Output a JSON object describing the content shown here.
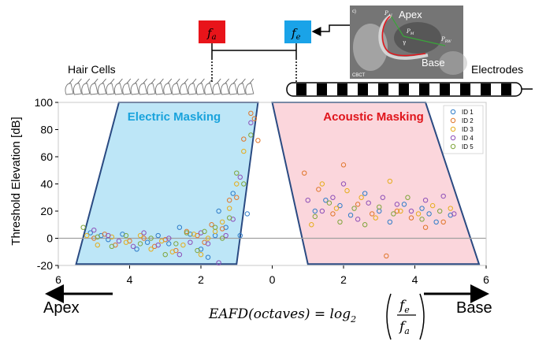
{
  "figure": {
    "fa_label": "f",
    "fa_sub": "a",
    "fe_label": "f",
    "fe_sub": "e",
    "hair_cells_label": "Hair Cells",
    "electrodes_label": "Electrodes",
    "ct_inset": {
      "corner_label": "c)",
      "apex_label": "Apex",
      "base_label": "Base",
      "modality_label": "CBCT",
      "pa_label": "P",
      "pa_sub": "AI",
      "pm_label": "P",
      "pm_sub": "M",
      "prw_label": "P",
      "prw_sub": "RW",
      "angle_label": "γ"
    },
    "electric_masking_label": "Electric Masking",
    "acoustic_masking_label": "Acoustic Masking",
    "apex_arrow_label": "Apex",
    "base_arrow_label": "Base",
    "formula": {
      "lhs": "EAFD(octaves) = log",
      "log_base": "2",
      "num": "f",
      "num_sub": "e",
      "den": "f",
      "den_sub": "a"
    },
    "colors": {
      "fa_box": "#e8141a",
      "fe_box": "#1aa3e8",
      "electric_fill": "#bde6f7",
      "acoustic_fill": "#fbd6dc",
      "outline": "#2a4a82",
      "electric_text": "#19a3dc",
      "acoustic_text": "#e0151c"
    }
  },
  "chart_data": {
    "type": "scatter",
    "ylabel": "Threshold Elevation [dB]",
    "xlabel": "",
    "xlim": [
      -6,
      6
    ],
    "ylim": [
      -20,
      100
    ],
    "x_ticks": [
      -6,
      -4,
      -2,
      0,
      2,
      4,
      6
    ],
    "x_tick_labels": [
      "6",
      "4",
      "2",
      "0",
      "2",
      "4",
      "6"
    ],
    "y_ticks": [
      -20,
      0,
      20,
      40,
      60,
      80,
      100
    ],
    "grid": false,
    "legend_placement": "top-right",
    "regions": [
      {
        "label": "Electric Masking",
        "polygon": [
          [
            -4.3,
            100
          ],
          [
            -0.4,
            100
          ],
          [
            -1.0,
            -19
          ],
          [
            -5.5,
            -19
          ]
        ]
      },
      {
        "label": "Acoustic Masking",
        "polygon": [
          [
            0.0,
            100
          ],
          [
            4.3,
            100
          ],
          [
            5.8,
            -19
          ],
          [
            1.0,
            -19
          ]
        ]
      }
    ],
    "series": [
      {
        "name": "ID 1",
        "color": "#2e7cc9",
        "points": [
          [
            -5.1,
            4
          ],
          [
            -4.8,
            2
          ],
          [
            -4.6,
            -1
          ],
          [
            -4.2,
            3
          ],
          [
            -3.8,
            -8
          ],
          [
            -3.5,
            -3
          ],
          [
            -3.2,
            2
          ],
          [
            -2.9,
            -4
          ],
          [
            -2.6,
            8
          ],
          [
            -2.3,
            3
          ],
          [
            -2.0,
            -8
          ],
          [
            -1.8,
            -14
          ],
          [
            -1.6,
            2
          ],
          [
            -1.5,
            20
          ],
          [
            -1.3,
            8
          ],
          [
            -1.1,
            33
          ],
          [
            -0.9,
            2
          ],
          [
            -0.7,
            18
          ],
          [
            1.2,
            20
          ],
          [
            1.5,
            28
          ],
          [
            1.9,
            24
          ],
          [
            2.2,
            17
          ],
          [
            2.6,
            33
          ],
          [
            3.0,
            20
          ],
          [
            3.3,
            12
          ],
          [
            3.7,
            25
          ],
          [
            4.2,
            22
          ],
          [
            4.6,
            12
          ],
          [
            5.0,
            17
          ],
          [
            4.4,
            18
          ]
        ]
      },
      {
        "name": "ID 2",
        "color": "#e0762a",
        "points": [
          [
            -5.0,
            0
          ],
          [
            -4.7,
            3
          ],
          [
            -4.4,
            -5
          ],
          [
            -4.0,
            -2
          ],
          [
            -3.6,
            0
          ],
          [
            -3.3,
            -6
          ],
          [
            -3.0,
            -1
          ],
          [
            -2.7,
            -9
          ],
          [
            -2.4,
            5
          ],
          [
            -2.1,
            2
          ],
          [
            -1.9,
            -3
          ],
          [
            -1.7,
            10
          ],
          [
            -1.4,
            7
          ],
          [
            -1.2,
            28
          ],
          [
            -1.0,
            30
          ],
          [
            -0.8,
            73
          ],
          [
            -0.6,
            92
          ],
          [
            -0.5,
            88
          ],
          [
            -0.4,
            72
          ],
          [
            0.9,
            48
          ],
          [
            1.3,
            36
          ],
          [
            1.7,
            18
          ],
          [
            2.0,
            54
          ],
          [
            2.4,
            25
          ],
          [
            2.8,
            18
          ],
          [
            3.2,
            -13
          ],
          [
            3.5,
            20
          ],
          [
            3.9,
            15
          ],
          [
            4.3,
            8
          ],
          [
            4.8,
            12
          ]
        ]
      },
      {
        "name": "ID 3",
        "color": "#e5ad1b",
        "points": [
          [
            -5.2,
            2
          ],
          [
            -4.9,
            -5
          ],
          [
            -4.5,
            1
          ],
          [
            -4.1,
            -3
          ],
          [
            -3.7,
            2
          ],
          [
            -3.4,
            -8
          ],
          [
            -3.1,
            -2
          ],
          [
            -2.8,
            -10
          ],
          [
            -2.5,
            -5
          ],
          [
            -2.2,
            3
          ],
          [
            -2.0,
            -12
          ],
          [
            -1.8,
            0
          ],
          [
            -1.6,
            5
          ],
          [
            -1.4,
            12
          ],
          [
            -1.2,
            22
          ],
          [
            -1.0,
            40
          ],
          [
            -0.8,
            64
          ],
          [
            1.1,
            10
          ],
          [
            1.4,
            40
          ],
          [
            1.8,
            22
          ],
          [
            2.1,
            35
          ],
          [
            2.5,
            30
          ],
          [
            2.9,
            15
          ],
          [
            3.3,
            42
          ],
          [
            3.6,
            20
          ],
          [
            4.1,
            18
          ],
          [
            4.5,
            24
          ],
          [
            5.0,
            22
          ]
        ]
      },
      {
        "name": "ID 4",
        "color": "#8d4fb8",
        "points": [
          [
            -5.0,
            6
          ],
          [
            -4.6,
            2
          ],
          [
            -4.3,
            -2
          ],
          [
            -3.9,
            -6
          ],
          [
            -3.6,
            4
          ],
          [
            -3.2,
            -5
          ],
          [
            -2.9,
            0
          ],
          [
            -2.6,
            -12
          ],
          [
            -2.3,
            -3
          ],
          [
            -2.0,
            4
          ],
          [
            -1.8,
            -4
          ],
          [
            -1.5,
            -18
          ],
          [
            -1.3,
            2
          ],
          [
            -1.1,
            14
          ],
          [
            -0.9,
            45
          ],
          [
            -0.6,
            85
          ],
          [
            1.0,
            28
          ],
          [
            1.4,
            20
          ],
          [
            1.7,
            30
          ],
          [
            2.0,
            40
          ],
          [
            2.4,
            14
          ],
          [
            2.7,
            26
          ],
          [
            3.1,
            30
          ],
          [
            3.5,
            25
          ],
          [
            3.9,
            20
          ],
          [
            4.3,
            28
          ],
          [
            4.8,
            31
          ],
          [
            5.1,
            18
          ]
        ]
      },
      {
        "name": "ID 5",
        "color": "#7fa53b",
        "points": [
          [
            -5.3,
            8
          ],
          [
            -4.9,
            1
          ],
          [
            -4.5,
            -6
          ],
          [
            -4.1,
            2
          ],
          [
            -3.7,
            -4
          ],
          [
            -3.4,
            0
          ],
          [
            -3.0,
            -12
          ],
          [
            -2.7,
            -4
          ],
          [
            -2.4,
            4
          ],
          [
            -2.1,
            -9
          ],
          [
            -1.9,
            5
          ],
          [
            -1.6,
            8
          ],
          [
            -1.4,
            0
          ],
          [
            -1.2,
            15
          ],
          [
            -1.0,
            48
          ],
          [
            -0.8,
            40
          ],
          [
            -0.6,
            76
          ],
          [
            1.2,
            16
          ],
          [
            1.6,
            26
          ],
          [
            1.9,
            12
          ],
          [
            2.3,
            22
          ],
          [
            2.6,
            10
          ],
          [
            3.0,
            23
          ],
          [
            3.4,
            18
          ],
          [
            3.8,
            30
          ],
          [
            4.2,
            14
          ],
          [
            4.7,
            20
          ]
        ]
      }
    ]
  }
}
